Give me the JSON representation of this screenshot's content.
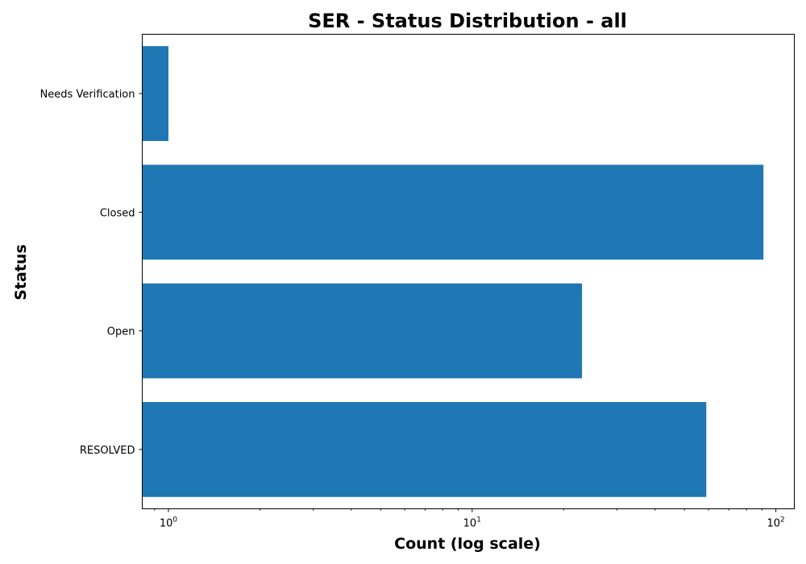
{
  "chart_data": {
    "type": "bar",
    "orientation": "horizontal",
    "title": "SER - Status Distribution - all",
    "xlabel": "Count (log scale)",
    "ylabel": "Status",
    "xscale": "log",
    "xlim": [
      0.82,
      115
    ],
    "x_ticks": [
      {
        "value": 1,
        "base": "10",
        "exp": "0"
      },
      {
        "value": 10,
        "base": "10",
        "exp": "1"
      },
      {
        "value": 100,
        "base": "10",
        "exp": "2"
      }
    ],
    "categories": [
      "Needs Verification",
      "Closed",
      "Open",
      "RESOLVED"
    ],
    "values": [
      1,
      91,
      23,
      59
    ],
    "bar_color": "#1f77b4",
    "grid": false,
    "legend": "none"
  }
}
